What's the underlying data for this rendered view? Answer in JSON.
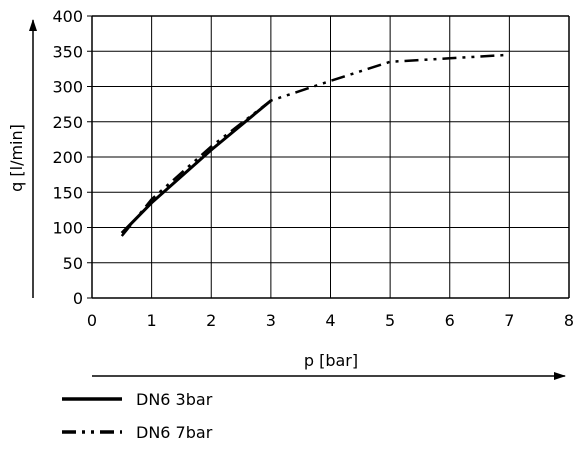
{
  "chart_data": {
    "type": "line",
    "xlabel": "p [bar]",
    "ylabel": "q [l/min]",
    "xlim": [
      0,
      8
    ],
    "ylim": [
      0,
      400
    ],
    "xticks": [
      "0",
      "1",
      "2",
      "3",
      "4",
      "5",
      "6",
      "7",
      "8"
    ],
    "yticks": [
      "0",
      "50",
      "100",
      "150",
      "200",
      "250",
      "300",
      "350",
      "400"
    ],
    "grid": true,
    "legend_position": "bottom-left",
    "series": [
      {
        "name": "DN6 3bar",
        "style": "solid",
        "x": [
          0.5,
          1,
          2,
          3
        ],
        "y": [
          92,
          135,
          210,
          280
        ]
      },
      {
        "name": "DN6 7bar",
        "style": "dash-dot-dot",
        "x": [
          0.5,
          1,
          2,
          3,
          4,
          5,
          6,
          7
        ],
        "y": [
          88,
          140,
          215,
          280,
          308,
          335,
          340,
          345
        ]
      }
    ]
  }
}
